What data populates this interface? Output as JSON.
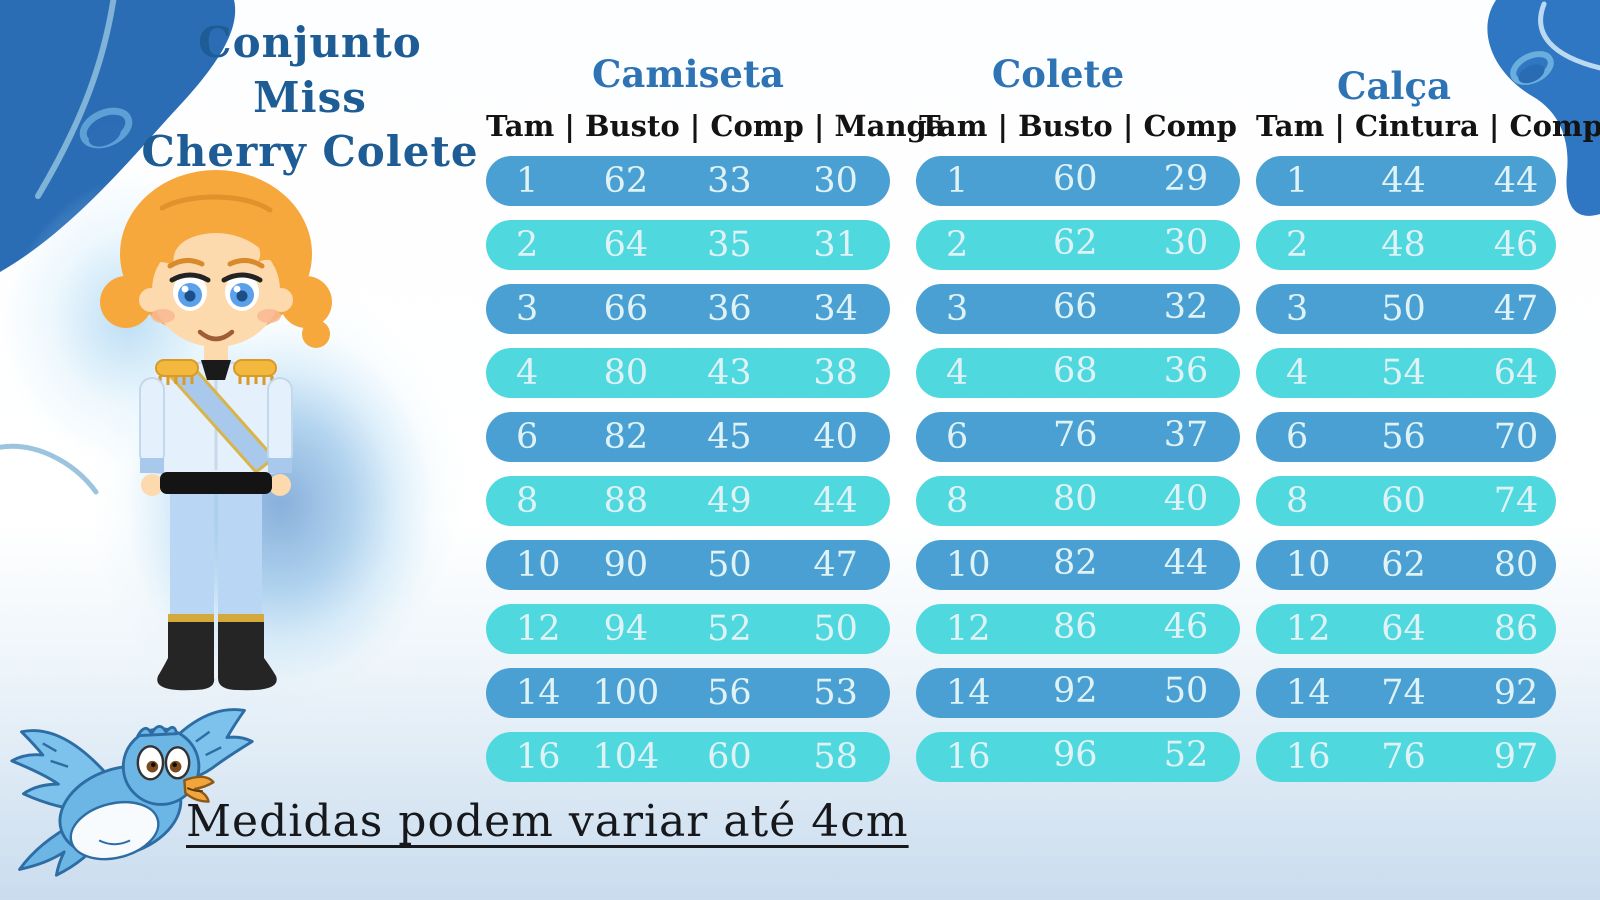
{
  "brand": {
    "title_line1": "Conjunto Miss",
    "title_line2": "Cherry Colete"
  },
  "tables": [
    {
      "name": "Camiseta",
      "header": "Tam | Busto | Comp | Manga",
      "columns": [
        "Tam",
        "Busto",
        "Comp",
        "Manga"
      ],
      "rows": [
        [
          "1",
          "62",
          "33",
          "30"
        ],
        [
          "2",
          "64",
          "35",
          "31"
        ],
        [
          "3",
          "66",
          "36",
          "34"
        ],
        [
          "4",
          "80",
          "43",
          "38"
        ],
        [
          "6",
          "82",
          "45",
          "40"
        ],
        [
          "8",
          "88",
          "49",
          "44"
        ],
        [
          "10",
          "90",
          "50",
          "47"
        ],
        [
          "12",
          "94",
          "52",
          "50"
        ],
        [
          "14",
          "100",
          "56",
          "53"
        ],
        [
          "16",
          "104",
          "60",
          "58"
        ]
      ]
    },
    {
      "name": "Colete",
      "header": "Tam | Busto | Comp",
      "columns": [
        "Tam",
        "Busto",
        "Comp"
      ],
      "rows": [
        [
          "1",
          "60",
          "29"
        ],
        [
          "2",
          "62",
          "30"
        ],
        [
          "3",
          "66",
          "32"
        ],
        [
          "4",
          "68",
          "36"
        ],
        [
          "6",
          "76",
          "37"
        ],
        [
          "8",
          "80",
          "40"
        ],
        [
          "10",
          "82",
          "44"
        ],
        [
          "12",
          "86",
          "46"
        ],
        [
          "14",
          "92",
          "50"
        ],
        [
          "16",
          "96",
          "52"
        ]
      ]
    },
    {
      "name": "Calça",
      "header": "Tam | Cintura | Comp",
      "columns": [
        "Tam",
        "Cintura",
        "Comp"
      ],
      "rows": [
        [
          "1",
          "44",
          "44"
        ],
        [
          "2",
          "48",
          "46"
        ],
        [
          "3",
          "50",
          "47"
        ],
        [
          "4",
          "54",
          "64"
        ],
        [
          "6",
          "56",
          "70"
        ],
        [
          "8",
          "60",
          "74"
        ],
        [
          "10",
          "62",
          "80"
        ],
        [
          "12",
          "64",
          "86"
        ],
        [
          "14",
          "74",
          "92"
        ],
        [
          "16",
          "76",
          "97"
        ]
      ]
    }
  ],
  "footnote": "Medidas podem variar até 4cm",
  "colors": {
    "row_dark": "#4AA0D2",
    "row_light": "#4FD8DE",
    "section_title": "#2E74B5",
    "brand_title": "#1D5C94",
    "header_text": "#131313",
    "row_text": "#DFF3F7",
    "footnote_text": "#16181C",
    "blob_blue": "#2A6DB5"
  },
  "icons": {
    "top_left_blob": "corner-blob",
    "top_right_blob": "corner-blob",
    "left_ring": "ring-icon",
    "right_ring": "ring-icon",
    "prince": "prince-illustration",
    "bird": "bluebird-illustration"
  }
}
